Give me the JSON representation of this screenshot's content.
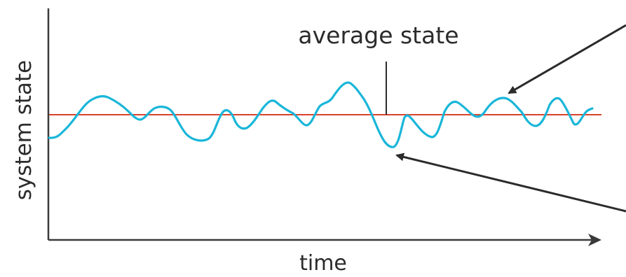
{
  "diagram": {
    "y_axis_label": "system state",
    "x_axis_label": "time",
    "average_label": "average state",
    "colors": {
      "axis": "#3a3a3a",
      "signal": "#19b6d9",
      "average_line": "#d9432c",
      "text": "#2b2b2b"
    }
  }
}
